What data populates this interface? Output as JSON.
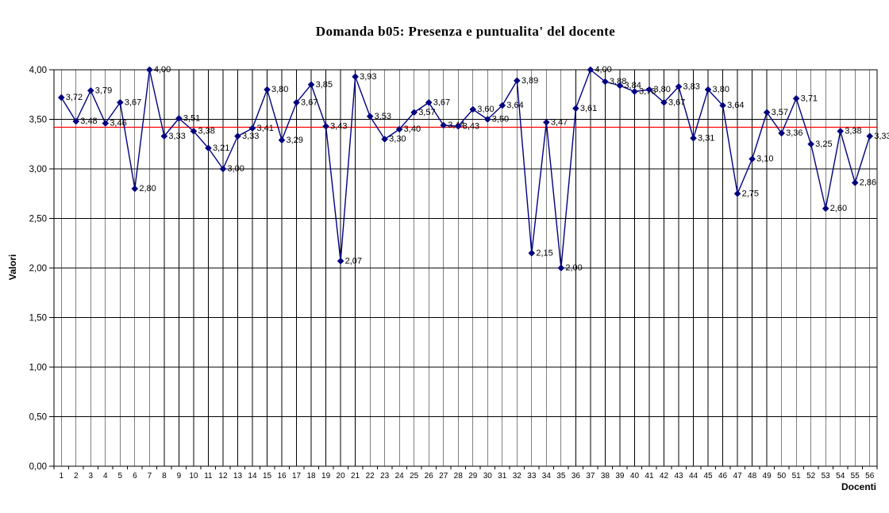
{
  "title": "Domanda b05: Presenza e puntualita' del docente",
  "chart_data": {
    "type": "line",
    "title": "Domanda b05: Presenza e puntualita' del docente",
    "xlabel": "Docenti",
    "ylabel": "Valori",
    "ylim": [
      0,
      4
    ],
    "ytick_step": 0.5,
    "ytick_labels": [
      "0,00",
      "0,50",
      "1,00",
      "1,50",
      "2,00",
      "2,50",
      "3,00",
      "3,50",
      "4,00"
    ],
    "grid": "both",
    "legend": "none",
    "decimal_separator": ",",
    "x": [
      1,
      2,
      3,
      4,
      5,
      6,
      7,
      8,
      9,
      10,
      11,
      12,
      13,
      14,
      15,
      16,
      17,
      18,
      19,
      20,
      21,
      22,
      23,
      24,
      25,
      26,
      27,
      28,
      29,
      30,
      31,
      32,
      33,
      34,
      35,
      36,
      37,
      38,
      39,
      40,
      41,
      42,
      43,
      44,
      45,
      46,
      47,
      48,
      49,
      50,
      51,
      52,
      53,
      54,
      55,
      56
    ],
    "values": [
      3.72,
      3.48,
      3.79,
      3.46,
      3.67,
      2.8,
      4.0,
      3.33,
      3.51,
      3.38,
      3.21,
      3.0,
      3.33,
      3.41,
      3.8,
      3.29,
      3.67,
      3.85,
      3.43,
      2.07,
      3.93,
      3.53,
      3.3,
      3.4,
      3.57,
      3.67,
      3.44,
      3.43,
      3.6,
      3.5,
      3.64,
      3.89,
      2.15,
      3.47,
      2.0,
      3.61,
      4.0,
      3.88,
      3.84,
      3.78,
      3.8,
      3.67,
      3.83,
      3.31,
      3.8,
      3.64,
      2.75,
      3.1,
      3.57,
      3.36,
      3.71,
      3.25,
      2.6,
      3.38,
      2.86,
      3.33
    ],
    "point_labels": [
      "3,72",
      "3,48",
      "3,79",
      "3,46",
      "3,67",
      "2,80",
      "4,00",
      "3,33",
      "3,51",
      "3,38",
      "3,21",
      "3,00",
      "3,33",
      "3,41",
      "3,80",
      "3,29",
      "3,67",
      "3,85",
      "3,43",
      "2,07",
      "3,93",
      "3,53",
      "3,30",
      "3,40",
      "3,57",
      "3,67",
      "3,44",
      "3,43",
      "3,60",
      "3,50",
      "3,64",
      "3,89",
      "2,15",
      "3,47",
      "2,00",
      "3,61",
      "4,00",
      "3,88",
      "3,84",
      "3,78",
      "3,80",
      "3,67",
      "3,83",
      "3,31",
      "3,80",
      "3,64",
      "2,75",
      "3,10",
      "3,57",
      "3,36",
      "3,71",
      "3,25",
      "2,60",
      "3,38",
      "2,86",
      "3,33"
    ],
    "reference_line": 3.42,
    "colors": {
      "series_line": "#000080",
      "marker": "#000080",
      "reference_line": "#ff0000",
      "gridline": "#000000",
      "axis": "#000000",
      "text": "#000000",
      "background": "#ffffff"
    }
  }
}
